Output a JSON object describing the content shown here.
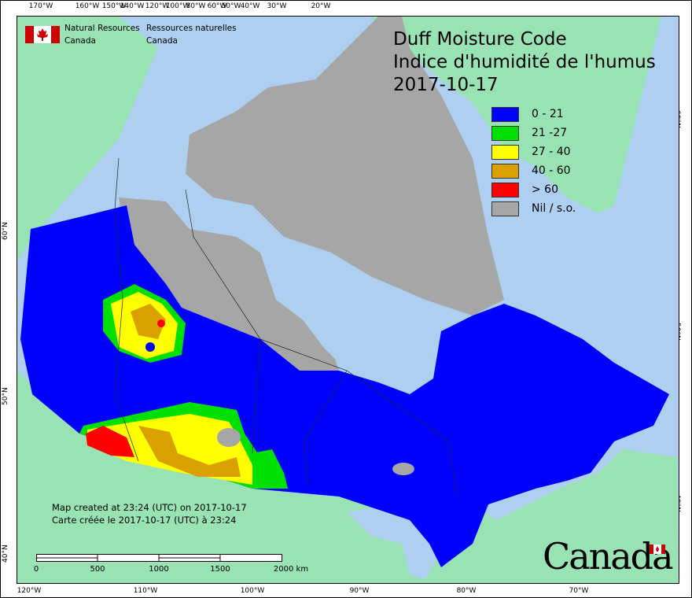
{
  "title": {
    "line1": "Duff Moisture Code",
    "line2": "Indice d'humidité de l'humus",
    "date": "2017-10-17"
  },
  "agency": {
    "en_line1": "Natural Resources",
    "en_line2": "Canada",
    "fr_line1": "Ressources naturelles",
    "fr_line2": "Canada",
    "logo": "canada-flag-icon"
  },
  "legend": [
    {
      "label": "0 - 21",
      "color": "#0000ff"
    },
    {
      "label": "21 -27",
      "color": "#00e000"
    },
    {
      "label": "27 - 40",
      "color": "#ffff00"
    },
    {
      "label": "40 - 60",
      "color": "#d9a000"
    },
    {
      "label": "> 60",
      "color": "#ff0000"
    },
    {
      "label": "Nil / s.o.",
      "color": "#a6a6a6"
    }
  ],
  "top_axis": [
    "170°W",
    "160°W",
    "150°W",
    "140°W",
    "120°W",
    "100°W",
    "80°W",
    "60°W",
    "50°W",
    "40°W",
    "30°W",
    "20°W"
  ],
  "bottom_axis": [
    "120°W",
    "110°W",
    "100°W",
    "90°W",
    "80°W",
    "70°W"
  ],
  "left_axis": [
    "60°N",
    "50°N",
    "40°N"
  ],
  "right_axis": [
    "60°N",
    "50°N",
    "40°N"
  ],
  "created": {
    "en": "Map created at 23:24 (UTC) on 2017-10-17",
    "fr": "Carte créée le 2017-10-17 (UTC) à 23:24"
  },
  "scale_bar": {
    "labels": [
      "0",
      "500",
      "1000",
      "1500",
      "2000  km"
    ]
  },
  "wordmark": "Canada",
  "colors": {
    "water": "#aecff0",
    "land_foreign": "#98e2b4",
    "nil": "#a6a6a6"
  }
}
